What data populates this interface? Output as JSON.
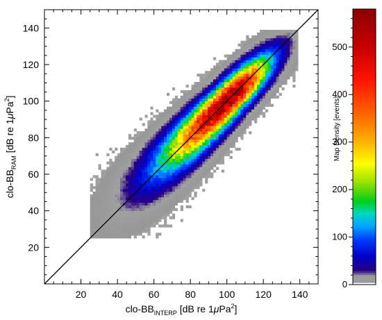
{
  "chart_data": {
    "type": "heatmap",
    "title": "",
    "xlabel": {
      "main": "clo-BB",
      "subscript": "INTERP",
      "unit_open": " [dB re 1",
      "mu": "μ",
      "unit_close": "Pa",
      "power": "2",
      "bracket_end": "]"
    },
    "ylabel": {
      "main": "clo-BB",
      "subscript": "RAM",
      "unit_open": " [dB re 1",
      "mu": "μ",
      "unit_close": "Pa",
      "power": "2",
      "bracket_end": "]"
    },
    "xlim": [
      0,
      150
    ],
    "ylim": [
      0,
      150
    ],
    "xticks": [
      20,
      40,
      60,
      80,
      100,
      120,
      140
    ],
    "yticks": [
      20,
      40,
      60,
      80,
      100,
      120,
      140
    ],
    "diagonal_line": {
      "from": [
        0,
        0
      ],
      "to": [
        150,
        150
      ]
    },
    "grid": false,
    "density_ridge": {
      "description_points": [
        {
          "x": 33,
          "y": 33
        },
        {
          "x": 50,
          "y": 52
        },
        {
          "x": 70,
          "y": 70
        },
        {
          "x": 90,
          "y": 90
        },
        {
          "x": 103,
          "y": 102
        },
        {
          "x": 120,
          "y": 120
        },
        {
          "x": 130,
          "y": 130
        }
      ],
      "peak": {
        "x": 103,
        "y": 102,
        "density": 560
      }
    },
    "colorbar": {
      "label": "Map Density [events]",
      "range": [
        0,
        580
      ],
      "ticks": [
        0,
        100,
        200,
        300,
        400,
        500
      ],
      "low_values_color": "#a0a0a0",
      "colors": [
        "#ffffff",
        "#a0a0a0",
        "#2a0080",
        "#0000c0",
        "#0030ff",
        "#00a0ff",
        "#00d8c0",
        "#00d000",
        "#a0e000",
        "#ffff00",
        "#ffb000",
        "#ff6000",
        "#ff0000",
        "#c00000",
        "#900000"
      ]
    }
  }
}
